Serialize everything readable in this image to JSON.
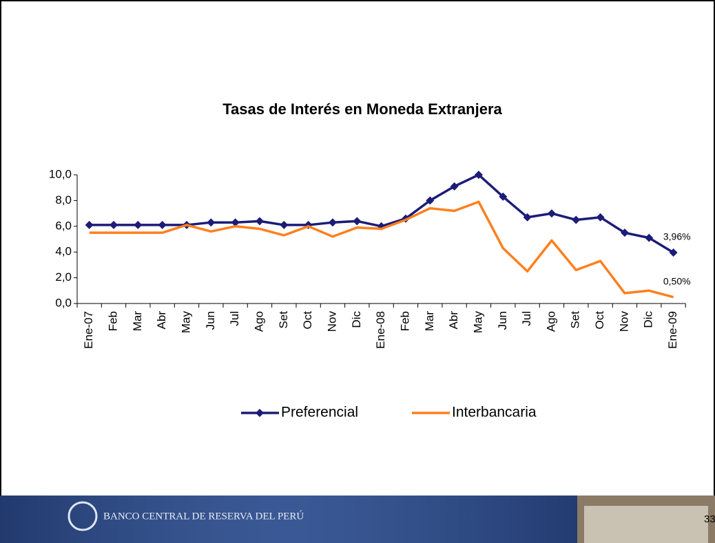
{
  "chart_data": {
    "type": "line",
    "title": "Tasas de Interés en Moneda Extranjera",
    "categories": [
      "Ene-07",
      "Feb",
      "Mar",
      "Abr",
      "May",
      "Jun",
      "Jul",
      "Ago",
      "Set",
      "Oct",
      "Nov",
      "Dic",
      "Ene-08",
      "Feb",
      "Mar",
      "Abr",
      "May",
      "Jun",
      "Jul",
      "Ago",
      "Set",
      "Oct",
      "Nov",
      "Dic",
      "Ene-09"
    ],
    "series": [
      {
        "name": "Preferencial",
        "color": "#1c1c78",
        "marker": "diamond",
        "values": [
          6.1,
          6.1,
          6.1,
          6.1,
          6.1,
          6.3,
          6.3,
          6.4,
          6.1,
          6.1,
          6.3,
          6.4,
          6.0,
          6.6,
          8.0,
          9.1,
          10.0,
          8.3,
          6.7,
          7.0,
          6.5,
          6.7,
          5.5,
          5.1,
          3.96
        ],
        "value_labels": [
          null,
          null,
          null,
          null,
          null,
          null,
          null,
          null,
          null,
          null,
          null,
          null,
          null,
          null,
          null,
          null,
          null,
          null,
          null,
          null,
          null,
          null,
          null,
          null,
          "3,96%"
        ]
      },
      {
        "name": "Interbancaria",
        "color": "#ff7f1e",
        "values": [
          5.5,
          5.5,
          5.5,
          5.5,
          6.1,
          5.6,
          6.0,
          5.8,
          5.3,
          6.0,
          5.2,
          5.9,
          5.8,
          6.5,
          7.4,
          7.2,
          7.9,
          4.3,
          2.5,
          4.9,
          2.6,
          3.3,
          0.8,
          1.0,
          0.5
        ],
        "value_labels": [
          null,
          null,
          null,
          null,
          null,
          null,
          null,
          null,
          null,
          null,
          null,
          null,
          null,
          null,
          null,
          null,
          null,
          null,
          null,
          null,
          null,
          null,
          null,
          null,
          "0,50%"
        ]
      }
    ],
    "ylim": [
      0,
      10
    ],
    "yticks": [
      {
        "value": 0,
        "label": "0,0"
      },
      {
        "value": 2,
        "label": "2,0"
      },
      {
        "value": 4,
        "label": "4,0"
      },
      {
        "value": 6,
        "label": "6,0"
      },
      {
        "value": 8,
        "label": "8,0"
      },
      {
        "value": 10,
        "label": "10,0"
      }
    ],
    "grid": false,
    "legend": "bottom"
  },
  "footer": {
    "institution": "BANCO CENTRAL DE RESERVA DEL PERÚ",
    "page": "33"
  }
}
